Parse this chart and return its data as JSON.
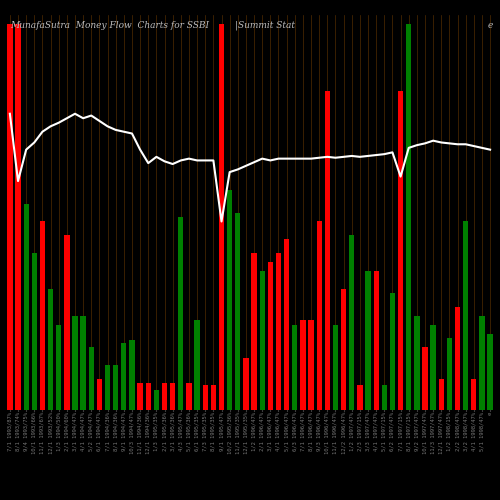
{
  "title": "MunafaSutra  Money Flow  Charts for SSBI",
  "subtitle": "|Summit Stat",
  "background_color": "#000000",
  "bar_colors": [
    "red",
    "red",
    "green",
    "green",
    "red",
    "green",
    "green",
    "red",
    "green",
    "green",
    "green",
    "red",
    "green",
    "green",
    "green",
    "green",
    "red",
    "red",
    "green",
    "red",
    "red",
    "green",
    "red",
    "green",
    "red",
    "red",
    "red",
    "green",
    "green",
    "red",
    "red",
    "green",
    "red",
    "red",
    "red",
    "green",
    "red",
    "red",
    "red",
    "red",
    "green",
    "red",
    "green",
    "red",
    "green",
    "red",
    "green",
    "green",
    "red",
    "green",
    "green",
    "red",
    "green",
    "red",
    "green",
    "red",
    "green",
    "red",
    "green",
    "green"
  ],
  "bar_heights": [
    430,
    430,
    230,
    175,
    210,
    135,
    95,
    195,
    105,
    105,
    70,
    35,
    50,
    50,
    75,
    78,
    30,
    30,
    22,
    30,
    30,
    215,
    30,
    100,
    28,
    28,
    430,
    245,
    220,
    58,
    175,
    155,
    165,
    175,
    190,
    95,
    100,
    100,
    210,
    355,
    95,
    135,
    195,
    28,
    155,
    155,
    28,
    130,
    355,
    430,
    105,
    70,
    95,
    35,
    80,
    115,
    210,
    35,
    105,
    85
  ],
  "line_values": [
    330,
    255,
    290,
    298,
    310,
    316,
    320,
    325,
    330,
    325,
    328,
    322,
    316,
    312,
    310,
    308,
    290,
    275,
    282,
    277,
    274,
    278,
    280,
    278,
    278,
    278,
    210,
    265,
    268,
    272,
    276,
    280,
    278,
    280,
    280,
    280,
    280,
    280,
    281,
    282,
    281,
    282,
    283,
    282,
    283,
    284,
    285,
    287,
    260,
    292,
    295,
    297,
    300,
    298,
    297,
    296,
    296,
    294,
    292,
    290
  ],
  "grid_color": "#5a3000",
  "line_color": "#ffffff",
  "title_color": "#bbbbbb",
  "tick_color": "#777777",
  "tick_fontsize": 4.0,
  "xlabels": [
    "7/1 1993/87%",
    "8/1 1993/74%",
    "9/4 1993/75%",
    "10/1 1993/66%",
    "11/1 1993/67%",
    "12/1 1993/52%",
    "1/3 1994/50%",
    "2/1 1994/60%",
    "3/1 1994/47%",
    "4/1 1994/47%",
    "5/2 1994/47%",
    "6/1 1994/47%",
    "7/1 1994/36%",
    "8/1 1994/36%",
    "9/1 1994/47%",
    "10/3 1994/47%",
    "11/1 1994/36%",
    "12/1 1994/36%",
    "1/3 1995/35%",
    "2/1 1995/36%",
    "3/1 1995/36%",
    "4/3 1995/47%",
    "5/1 1995/36%",
    "6/1 1995/35%",
    "7/3 1995/35%",
    "8/1 1995/35%",
    "9/1 1995/47%",
    "10/2 1995/36%",
    "11/1 1995/35%",
    "12/1 1995/35%",
    "1/2 1996/47%",
    "2/1 1996/47%",
    "3/1 1996/47%",
    "4/1 1996/47%",
    "5/1 1996/47%",
    "6/3 1996/47%",
    "7/1 1996/47%",
    "8/1 1996/47%",
    "9/3 1996/47%",
    "10/1 1996/47%",
    "11/1 1996/47%",
    "12/2 1996/47%",
    "1/2 1997/47%",
    "2/3 1997/15%",
    "3/3 1997/47%",
    "4/1 1997/47%",
    "5/1 1997/15%",
    "6/2 1997/47%",
    "7/1 1997/15%",
    "8/1 1997/15%",
    "9/2 1997/47%",
    "10/1 1997/47%",
    "11/3 1997/47%",
    "12/1 1997/47%",
    "1/2 1998/15%",
    "2/2 1998/47%",
    "3/2 1998/47%",
    "4/1 1998/47%",
    "5/1 1998/47%",
    "e"
  ]
}
